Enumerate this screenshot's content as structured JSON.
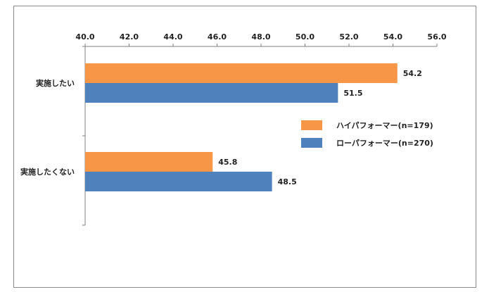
{
  "chart_data": {
    "type": "bar",
    "orientation": "horizontal",
    "categories": [
      "実施したい",
      "実施したくない"
    ],
    "series": [
      {
        "name": "ハイパフォーマー(n=179)",
        "values": [
          54.2,
          45.8
        ],
        "color": "#F79646"
      },
      {
        "name": "ローパフォーマー(n=270)",
        "values": [
          51.5,
          48.5
        ],
        "color": "#4F81BD"
      }
    ],
    "xlim": [
      40.0,
      56.0
    ],
    "ticks": [
      "40.0",
      "42.0",
      "44.0",
      "46.0",
      "48.0",
      "50.0",
      "52.0",
      "54.0",
      "56.0"
    ],
    "data_labels": [
      "54.2",
      "45.8",
      "51.5",
      "48.5"
    ],
    "axis_position": "top",
    "grid": false,
    "legend_position": "right"
  }
}
